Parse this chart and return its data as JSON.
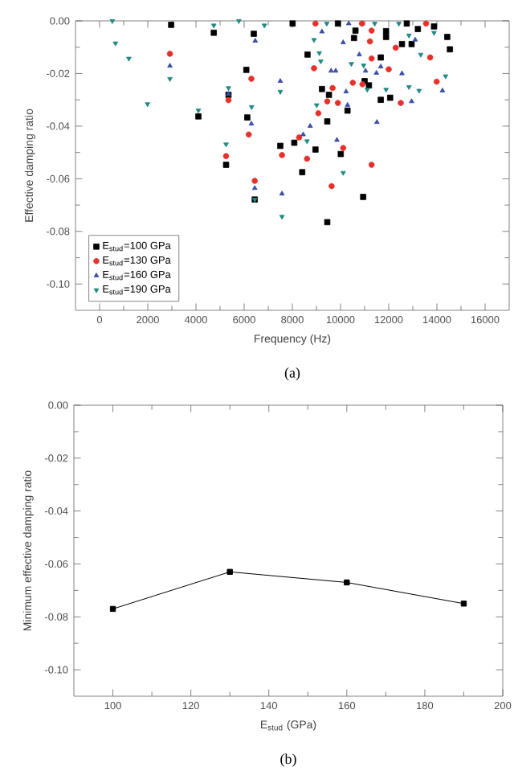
{
  "chart_data": [
    {
      "type": "scatter",
      "xlabel": "Frequency (Hz)",
      "ylabel": "Effective damping ratio",
      "annotations": [
        "(a)"
      ],
      "legend": "bottom left",
      "xlim": [
        -1000,
        17000
      ],
      "ylim": [
        -0.11,
        0
      ],
      "xticks": [
        0,
        2000,
        4000,
        6000,
        8000,
        10000,
        12000,
        14000,
        16000
      ],
      "yticks": [
        {
          "value": 0,
          "label": "0.00"
        },
        {
          "value": -0.02,
          "label": "-0.02"
        },
        {
          "value": -0.04,
          "label": "-0.04"
        },
        {
          "value": -0.06,
          "label": "-0.06"
        },
        {
          "value": -0.08,
          "label": "-0.08"
        },
        {
          "value": -0.1,
          "label": "-0.10"
        }
      ],
      "series": [
        {
          "name": "E$_{stud}$=100 GPa",
          "color": "#000000",
          "marker": "square",
          "x": [
            2970,
            4100,
            4740,
            5350,
            5250,
            6400,
            6090,
            6130,
            6440,
            7500,
            9450,
            10940,
            8410,
            8960,
            10010,
            8080,
            9450,
            10290,
            9520,
            9230,
            11180,
            11670,
            12060,
            11000,
            11670,
            8630,
            11890,
            12550,
            12950,
            14540,
            14430,
            10560,
            10620,
            11890,
            13210,
            13880,
            8010,
            9890,
            12750
          ],
          "values": [
            -0.0015,
            -0.0363,
            -0.0045,
            -0.0281,
            -0.0547,
            -0.0049,
            -0.0186,
            -0.0367,
            -0.0679,
            -0.0475,
            -0.0765,
            -0.0669,
            -0.0575,
            -0.0489,
            -0.0506,
            -0.0463,
            -0.0382,
            -0.0341,
            -0.0281,
            -0.0259,
            -0.0245,
            -0.03,
            -0.0292,
            -0.0229,
            -0.0139,
            -0.0128,
            -0.0061,
            -0.0088,
            -0.0088,
            -0.0108,
            -0.0061,
            -0.0065,
            -0.0037,
            -0.0039,
            -0.0031,
            -0.0021,
            -0.001,
            -0.001,
            -0.001
          ]
        },
        {
          "name": "E$_{stud}$=130 GPa",
          "color": "#e8302a",
          "marker": "circle",
          "x": [
            2920,
            5350,
            5250,
            6300,
            6190,
            6440,
            7570,
            11290,
            9630,
            8610,
            10110,
            8280,
            9080,
            9450,
            9890,
            9670,
            10510,
            10910,
            12500,
            13990,
            12000,
            11290,
            8900,
            11220,
            12290,
            13720,
            11290,
            8960,
            10890,
            13550
          ],
          "values": [
            -0.0125,
            -0.0301,
            -0.0514,
            -0.022,
            -0.0432,
            -0.0608,
            -0.051,
            -0.0547,
            -0.0628,
            -0.0524,
            -0.0483,
            -0.0443,
            -0.0351,
            -0.0306,
            -0.0312,
            -0.0255,
            -0.0235,
            -0.0241,
            -0.0312,
            -0.0231,
            -0.0184,
            -0.0143,
            -0.018,
            -0.0078,
            -0.0102,
            -0.0139,
            -0.0037,
            -0.001,
            -0.001,
            -0.001
          ]
        },
        {
          "name": "E$_{stud}$=160 GPa",
          "color": "#3b4fa8",
          "marker": "triangle",
          "x": [
            2920,
            5350,
            6460,
            6300,
            6440,
            7500,
            7570,
            9850,
            8450,
            8740,
            11510,
            10290,
            10230,
            12950,
            14230,
            11490,
            11670,
            12550,
            11040,
            9610,
            9800,
            10780,
            10110,
            13100,
            9230,
            10340
          ],
          "values": [
            -0.0171,
            -0.0278,
            -0.0076,
            -0.0391,
            -0.0636,
            -0.0229,
            -0.0657,
            -0.0453,
            -0.0432,
            -0.04,
            -0.0385,
            -0.032,
            -0.0269,
            -0.0306,
            -0.0265,
            -0.0198,
            -0.0174,
            -0.02,
            -0.019,
            -0.019,
            -0.019,
            -0.0128,
            -0.0082,
            -0.0072,
            -0.0041,
            -0.001
          ]
        },
        {
          "name": "E$_{stud}$=190 GPa",
          "color": "#1f8a84",
          "marker": "triangle-down",
          "x": [
            530,
            660,
            1215,
            1990,
            2920,
            4100,
            4740,
            5350,
            5250,
            5780,
            6310,
            6440,
            6840,
            7500,
            7570,
            10110,
            8610,
            9010,
            11110,
            11890,
            12840,
            13260,
            14360,
            10960,
            10450,
            9180,
            9120,
            13330,
            13880,
            12840,
            8900,
            9430,
            11420,
            12420
          ],
          "values": [
            0,
            -0.0085,
            -0.0143,
            -0.0316,
            -0.022,
            -0.034,
            -0.0017,
            -0.0255,
            -0.0469,
            0,
            -0.0327,
            -0.0679,
            -0.0017,
            -0.0269,
            -0.0744,
            -0.0577,
            -0.0457,
            -0.032,
            -0.0261,
            -0.0261,
            -0.0251,
            -0.0265,
            -0.021,
            -0.0169,
            -0.0163,
            -0.0153,
            -0.0122,
            -0.0128,
            -0.0045,
            -0.0055,
            -0.0072,
            -0.001,
            -0.001,
            -0.001
          ]
        }
      ]
    },
    {
      "type": "line",
      "xlabel": "E$_{stud}$ (GPa)",
      "ylabel": "Minimum effective damping ratio",
      "annotations": [
        "(b)"
      ],
      "marker": "square",
      "line_style": "solid",
      "xlim": [
        90,
        200
      ],
      "ylim": [
        -0.11,
        0
      ],
      "xticks": [
        100,
        120,
        140,
        160,
        180,
        200
      ],
      "yticks": [
        {
          "value": 0,
          "label": "0.00"
        },
        {
          "value": -0.02,
          "label": "-0.02"
        },
        {
          "value": -0.04,
          "label": "-0.04"
        },
        {
          "value": -0.06,
          "label": "-0.06"
        },
        {
          "value": -0.08,
          "label": "-0.08"
        },
        {
          "value": -0.1,
          "label": "-0.10"
        }
      ],
      "series": [
        {
          "color": "#000000",
          "x": [
            100,
            130,
            160,
            190
          ],
          "values": [
            -0.077,
            -0.063,
            -0.067,
            -0.075
          ]
        }
      ]
    }
  ]
}
